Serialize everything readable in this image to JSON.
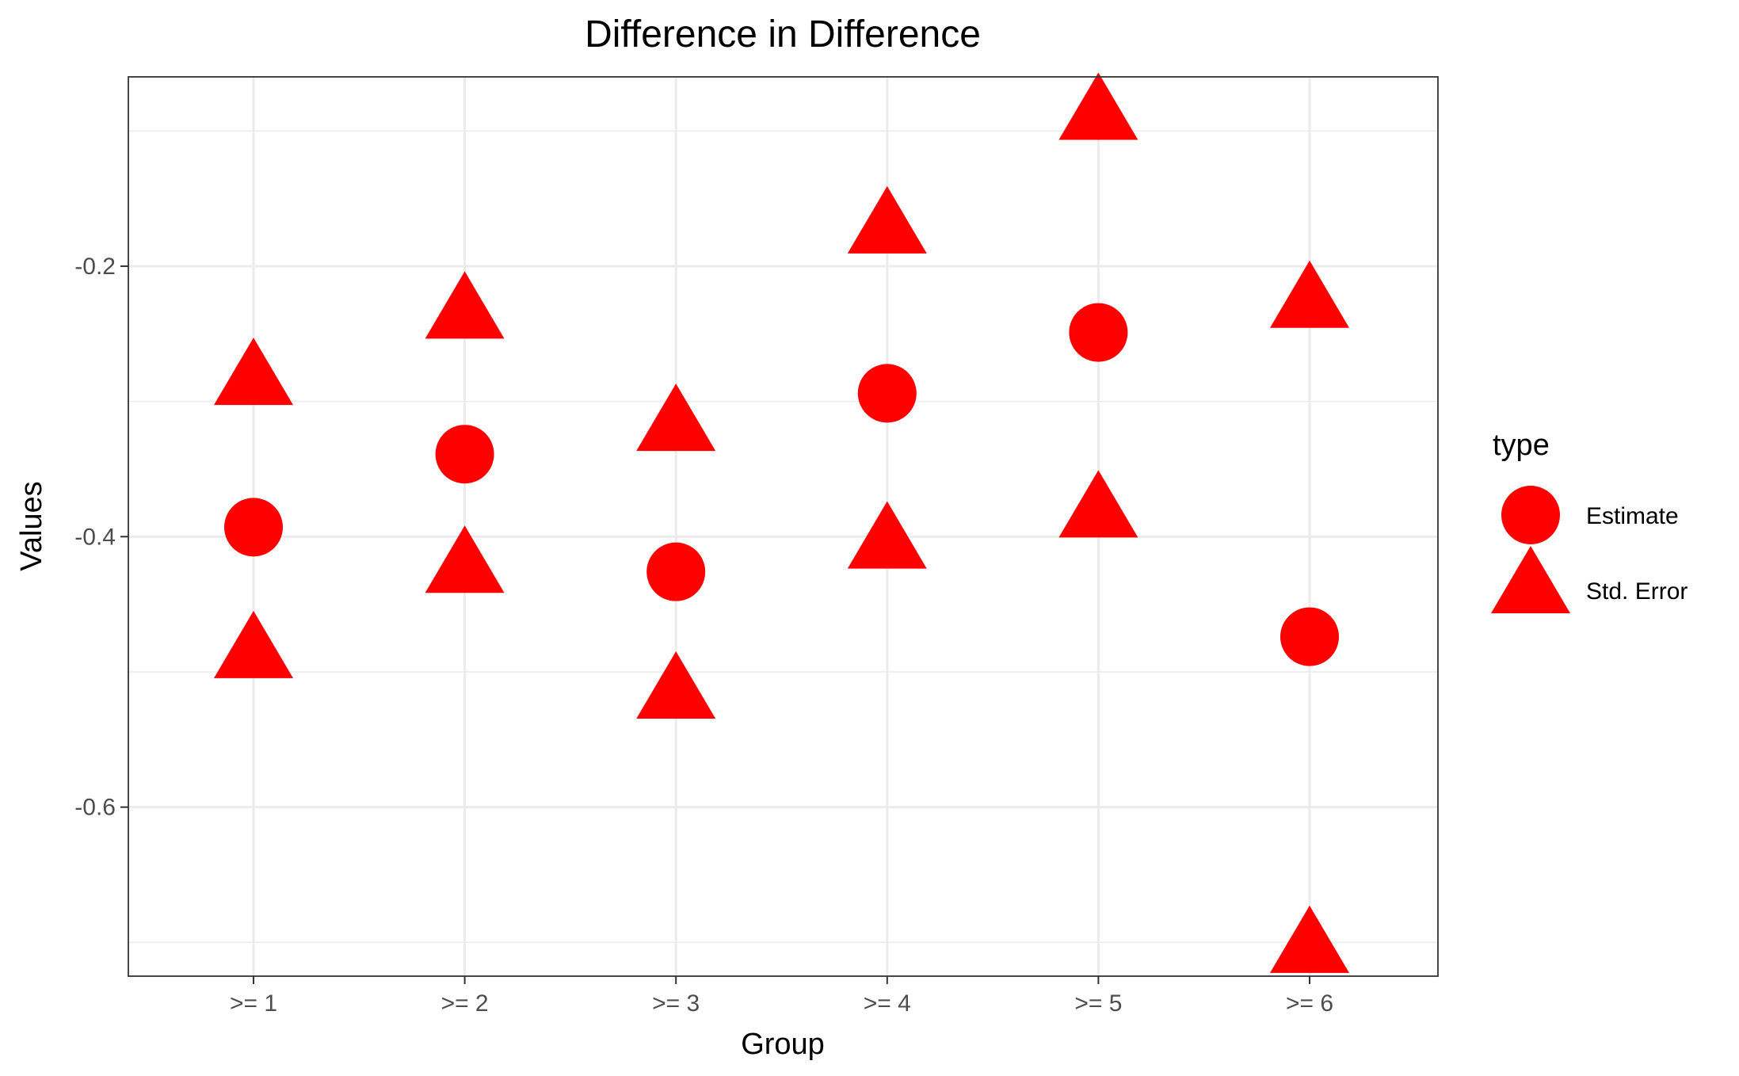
{
  "chart_data": {
    "type": "scatter",
    "title": "Difference in Difference",
    "xlabel": "Group",
    "ylabel": "Values",
    "categories": [
      ">= 1",
      ">= 2",
      ">= 3",
      ">= 4",
      ">= 5",
      ">= 6"
    ],
    "ylim": [
      -0.725,
      -0.06
    ],
    "y_ticks": [
      -0.6,
      -0.4,
      -0.2
    ],
    "y_tick_labels": [
      "-0.6",
      "-0.4",
      "-0.2"
    ],
    "grid": true,
    "point_color": "#ff0000",
    "legend": {
      "title": "type",
      "placement": "right",
      "entries": [
        {
          "label": "Estimate",
          "shape": "circle"
        },
        {
          "label": "Std. Error",
          "shape": "triangle"
        }
      ]
    },
    "series": [
      {
        "name": "Estimate",
        "shape": "circle",
        "values": [
          -0.393,
          -0.339,
          -0.426,
          -0.294,
          -0.249,
          -0.474
        ]
      },
      {
        "name": "Std. Error",
        "shape": "triangle",
        "values": [
          -0.286,
          -0.237,
          -0.32,
          -0.174,
          -0.09,
          -0.229
        ]
      },
      {
        "name": "Std. Error",
        "shape": "triangle",
        "values": [
          -0.488,
          -0.425,
          -0.518,
          -0.407,
          -0.384,
          -0.706
        ]
      }
    ]
  }
}
